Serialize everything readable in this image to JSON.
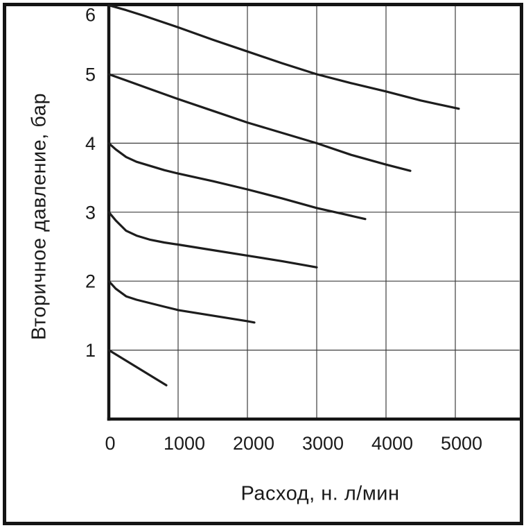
{
  "figure": {
    "background": "#ffffff",
    "frame_color": "#141414",
    "axis_color": "#141414",
    "grid_color": "#3d3d3d",
    "text_color": "#1a1a1a"
  },
  "chart_data": {
    "type": "line",
    "title": "",
    "xlabel": "Расход, н. л/мин",
    "ylabel": "Вторичное давление, бар",
    "x_ticks": [
      0,
      1000,
      2000,
      3000,
      4000,
      5000
    ],
    "y_ticks": [
      1,
      2,
      3,
      4,
      5,
      6
    ],
    "xlim": [
      0,
      5920
    ],
    "ylim": [
      0,
      6
    ],
    "grid": true,
    "legend_position": "none",
    "line_color": "#1d1d1d",
    "series": [
      {
        "name": "set-pressure-6-bar",
        "points": [
          [
            0,
            6.0
          ],
          [
            250,
            5.93
          ],
          [
            500,
            5.85
          ],
          [
            1000,
            5.68
          ],
          [
            1500,
            5.5
          ],
          [
            2000,
            5.33
          ],
          [
            2500,
            5.16
          ],
          [
            3000,
            5.0
          ],
          [
            3500,
            4.87
          ],
          [
            4000,
            4.75
          ],
          [
            4500,
            4.62
          ],
          [
            5050,
            4.5
          ]
        ]
      },
      {
        "name": "set-pressure-5-bar",
        "points": [
          [
            0,
            5.0
          ],
          [
            250,
            4.91
          ],
          [
            500,
            4.82
          ],
          [
            1000,
            4.64
          ],
          [
            1500,
            4.47
          ],
          [
            2000,
            4.3
          ],
          [
            2500,
            4.15
          ],
          [
            3000,
            4.0
          ],
          [
            3500,
            3.83
          ],
          [
            4000,
            3.69
          ],
          [
            4350,
            3.6
          ]
        ]
      },
      {
        "name": "set-pressure-4-bar",
        "points": [
          [
            0,
            4.0
          ],
          [
            100,
            3.91
          ],
          [
            250,
            3.8
          ],
          [
            400,
            3.73
          ],
          [
            600,
            3.67
          ],
          [
            800,
            3.61
          ],
          [
            1000,
            3.56
          ],
          [
            1500,
            3.45
          ],
          [
            2000,
            3.33
          ],
          [
            2500,
            3.2
          ],
          [
            3000,
            3.06
          ],
          [
            3400,
            2.97
          ],
          [
            3700,
            2.9
          ]
        ]
      },
      {
        "name": "set-pressure-3-bar",
        "points": [
          [
            0,
            3.0
          ],
          [
            100,
            2.88
          ],
          [
            250,
            2.73
          ],
          [
            400,
            2.66
          ],
          [
            600,
            2.6
          ],
          [
            800,
            2.56
          ],
          [
            1000,
            2.53
          ],
          [
            1500,
            2.45
          ],
          [
            2000,
            2.37
          ],
          [
            2500,
            2.29
          ],
          [
            3000,
            2.2
          ]
        ]
      },
      {
        "name": "set-pressure-2-bar",
        "points": [
          [
            0,
            2.0
          ],
          [
            100,
            1.89
          ],
          [
            250,
            1.78
          ],
          [
            400,
            1.73
          ],
          [
            600,
            1.68
          ],
          [
            800,
            1.63
          ],
          [
            1000,
            1.58
          ],
          [
            1500,
            1.5
          ],
          [
            2000,
            1.42
          ],
          [
            2100,
            1.4
          ]
        ]
      },
      {
        "name": "set-pressure-1-bar",
        "points": [
          [
            0,
            1.0
          ],
          [
            830,
            0.49
          ]
        ]
      }
    ]
  }
}
